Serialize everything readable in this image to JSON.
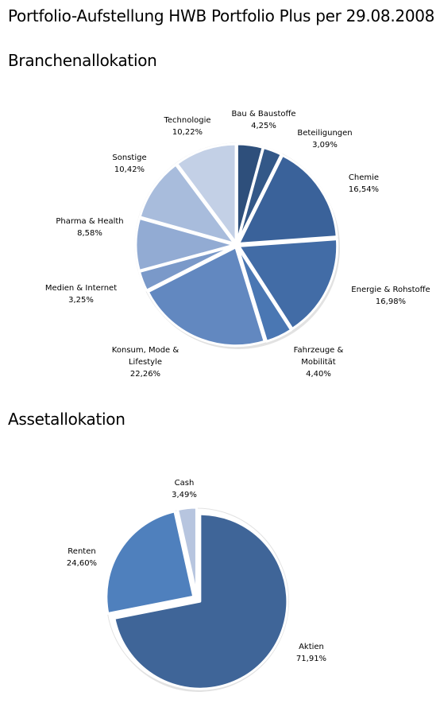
{
  "page": {
    "title": "Portfolio-Aufstellung HWB Portfolio Plus per 29.08.2008"
  },
  "chart_data": [
    {
      "type": "pie",
      "title": "Branchenallokation",
      "slices": [
        {
          "name": "Bau & Baustoffe",
          "value": 4.25,
          "label": "4,25%",
          "color": "#2e4f7b"
        },
        {
          "name": "Beteiligungen",
          "value": 3.09,
          "label": "3,09%",
          "color": "#335888"
        },
        {
          "name": "Chemie",
          "value": 16.54,
          "label": "16,54%",
          "color": "#3a629a"
        },
        {
          "name": "Energie & Rohstoffe",
          "value": 16.98,
          "label": "16,98%",
          "color": "#426ca6"
        },
        {
          "name": "Fahrzeuge & Mobilität",
          "value": 4.4,
          "label": "4,40%",
          "color": "#4a77b3"
        },
        {
          "name": "Konsum, Mode & Lifestyle",
          "value": 22.26,
          "label": "22,26%",
          "color": "#6288c0"
        },
        {
          "name": "Medien & Internet",
          "value": 3.25,
          "label": "3,25%",
          "color": "#7a99c9"
        },
        {
          "name": "Pharma & Health",
          "value": 8.58,
          "label": "8,58%",
          "color": "#92abd3"
        },
        {
          "name": "Sonstige",
          "value": 10.42,
          "label": "10,42%",
          "color": "#a8bcdc"
        },
        {
          "name": "Technologie",
          "value": 10.22,
          "label": "10,22%",
          "color": "#c3d0e6"
        }
      ]
    },
    {
      "type": "pie",
      "title": "Assetallokation",
      "slices": [
        {
          "name": "Aktien",
          "value": 71.91,
          "label": "71,91%",
          "color": "#3f6598"
        },
        {
          "name": "Renten",
          "value": 24.6,
          "label": "24,60%",
          "color": "#4f80bd"
        },
        {
          "name": "Cash",
          "value": 3.49,
          "label": "3,49%",
          "color": "#b7c5df"
        }
      ]
    }
  ]
}
